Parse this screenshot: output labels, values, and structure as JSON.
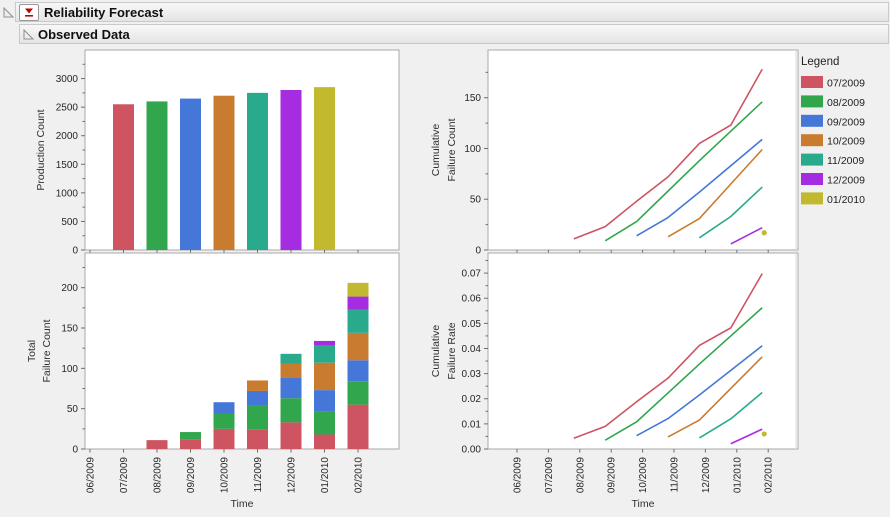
{
  "header": {
    "title": "Reliability Forecast"
  },
  "section": {
    "title": "Observed Data"
  },
  "icons": {
    "disclosure": "disclosure-triangle",
    "menu": "red-triangle-menu"
  },
  "style": {
    "page_bg": "#f0f0f0",
    "plot_bg": "#ffffff",
    "frame": "#a8a8a8",
    "tick": "#6e6e6e",
    "text": "#272727",
    "red_triangle": "#c40000",
    "legend_separator": "#d8d8d8"
  },
  "x_axis": {
    "label": "Time",
    "categories": [
      "06/2009",
      "07/2009",
      "08/2009",
      "09/2009",
      "10/2009",
      "11/2009",
      "12/2009",
      "01/2010",
      "02/2010"
    ]
  },
  "legend": {
    "title": "Legend",
    "entries": [
      {
        "label": "07/2009",
        "color": "#ce5462"
      },
      {
        "label": "08/2009",
        "color": "#32a64d"
      },
      {
        "label": "09/2009",
        "color": "#4577d9"
      },
      {
        "label": "10/2009",
        "color": "#c97c2f"
      },
      {
        "label": "11/2009",
        "color": "#29aa8d"
      },
      {
        "label": "12/2009",
        "color": "#a62ce2"
      },
      {
        "label": "01/2010",
        "color": "#c2b92e"
      }
    ]
  },
  "chart_data": [
    {
      "id": "production-count",
      "type": "bar",
      "ylabel_lines": [
        "Production Count"
      ],
      "xlabel": "Time",
      "bar_categories": [
        "07/2009",
        "08/2009",
        "09/2009",
        "10/2009",
        "11/2009",
        "12/2009",
        "01/2010"
      ],
      "values": [
        2550,
        2600,
        2650,
        2700,
        2750,
        2800,
        2850
      ],
      "colors": [
        "#ce5462",
        "#32a64d",
        "#4577d9",
        "#c97c2f",
        "#29aa8d",
        "#a62ce2",
        "#c2b92e"
      ],
      "yticks": [
        0,
        500,
        1000,
        1500,
        2000,
        2500,
        3000
      ],
      "ylim": [
        0,
        3500
      ],
      "grid": false
    },
    {
      "id": "total-failure-count",
      "type": "bar",
      "stacked": true,
      "ylabel_lines": [
        "Total",
        "Failure Count"
      ],
      "xlabel": "Time",
      "series": [
        {
          "name": "07/2009",
          "color": "#ce5462",
          "values": [
            null,
            null,
            11,
            12,
            25,
            24,
            33,
            18,
            55
          ]
        },
        {
          "name": "08/2009",
          "color": "#32a64d",
          "values": [
            null,
            null,
            null,
            9,
            19,
            30,
            30,
            29,
            29
          ]
        },
        {
          "name": "09/2009",
          "color": "#4577d9",
          "values": [
            null,
            null,
            null,
            null,
            14,
            18,
            25,
            26,
            26
          ]
        },
        {
          "name": "10/2009",
          "color": "#c97c2f",
          "values": [
            null,
            null,
            null,
            null,
            null,
            13,
            18,
            34,
            34
          ]
        },
        {
          "name": "11/2009",
          "color": "#29aa8d",
          "values": [
            null,
            null,
            null,
            null,
            null,
            null,
            12,
            21,
            29
          ]
        },
        {
          "name": "12/2009",
          "color": "#a62ce2",
          "values": [
            null,
            null,
            null,
            null,
            null,
            null,
            null,
            6,
            16
          ]
        },
        {
          "name": "01/2010",
          "color": "#c2b92e",
          "values": [
            null,
            null,
            null,
            null,
            null,
            null,
            null,
            null,
            17
          ]
        }
      ],
      "yticks": [
        0,
        50,
        100,
        150,
        200
      ],
      "ylim": [
        0,
        243
      ],
      "grid": false
    },
    {
      "id": "cumulative-failure-count",
      "type": "line",
      "ylabel_lines": [
        "Cumulative",
        "Failure Count"
      ],
      "xlabel": "Time",
      "series": [
        {
          "name": "07/2009",
          "color": "#ce5462",
          "start_category": "08/2009",
          "values": [
            11,
            23,
            48,
            72,
            105,
            123,
            178
          ]
        },
        {
          "name": "08/2009",
          "color": "#32a64d",
          "start_category": "09/2009",
          "values": [
            9,
            28,
            58,
            88,
            117,
            146
          ]
        },
        {
          "name": "09/2009",
          "color": "#4577d9",
          "start_category": "10/2009",
          "values": [
            14,
            32,
            57,
            83,
            109
          ]
        },
        {
          "name": "10/2009",
          "color": "#c97c2f",
          "start_category": "11/2009",
          "values": [
            13,
            31,
            65,
            99
          ]
        },
        {
          "name": "11/2009",
          "color": "#29aa8d",
          "start_category": "12/2009",
          "values": [
            12,
            33,
            62
          ]
        },
        {
          "name": "12/2009",
          "color": "#a62ce2",
          "start_category": "01/2010",
          "values": [
            6,
            22
          ]
        },
        {
          "name": "01/2010",
          "color": "#c2b92e",
          "start_category": "02/2010",
          "values": [
            17
          ],
          "marker": "point"
        }
      ],
      "yticks": [
        0,
        50,
        100,
        150
      ],
      "ylim": [
        0,
        197
      ],
      "grid": false,
      "legend_position": "right"
    },
    {
      "id": "cumulative-failure-rate",
      "type": "line",
      "ylabel_lines": [
        "Cumulative",
        "Failure Rate"
      ],
      "xlabel": "Time",
      "tick_decimals": 2,
      "series": [
        {
          "name": "07/2009",
          "color": "#ce5462",
          "start_category": "08/2009",
          "values": [
            0.0043,
            0.009,
            0.0188,
            0.0282,
            0.0412,
            0.0482,
            0.0698
          ]
        },
        {
          "name": "08/2009",
          "color": "#32a64d",
          "start_category": "09/2009",
          "values": [
            0.0035,
            0.0108,
            0.0223,
            0.0338,
            0.045,
            0.0562
          ]
        },
        {
          "name": "09/2009",
          "color": "#4577d9",
          "start_category": "10/2009",
          "values": [
            0.0053,
            0.0121,
            0.0215,
            0.0313,
            0.0411
          ]
        },
        {
          "name": "10/2009",
          "color": "#c97c2f",
          "start_category": "11/2009",
          "values": [
            0.0048,
            0.0115,
            0.0241,
            0.0367
          ]
        },
        {
          "name": "11/2009",
          "color": "#29aa8d",
          "start_category": "12/2009",
          "values": [
            0.0044,
            0.012,
            0.0225
          ]
        },
        {
          "name": "12/2009",
          "color": "#a62ce2",
          "start_category": "01/2010",
          "values": [
            0.0021,
            0.0079
          ]
        },
        {
          "name": "01/2010",
          "color": "#c2b92e",
          "start_category": "02/2010",
          "values": [
            0.006
          ],
          "marker": "point"
        }
      ],
      "yticks": [
        0,
        0.01,
        0.02,
        0.03,
        0.04,
        0.05,
        0.06,
        0.07
      ],
      "ylim": [
        0,
        0.078
      ],
      "grid": false
    }
  ]
}
